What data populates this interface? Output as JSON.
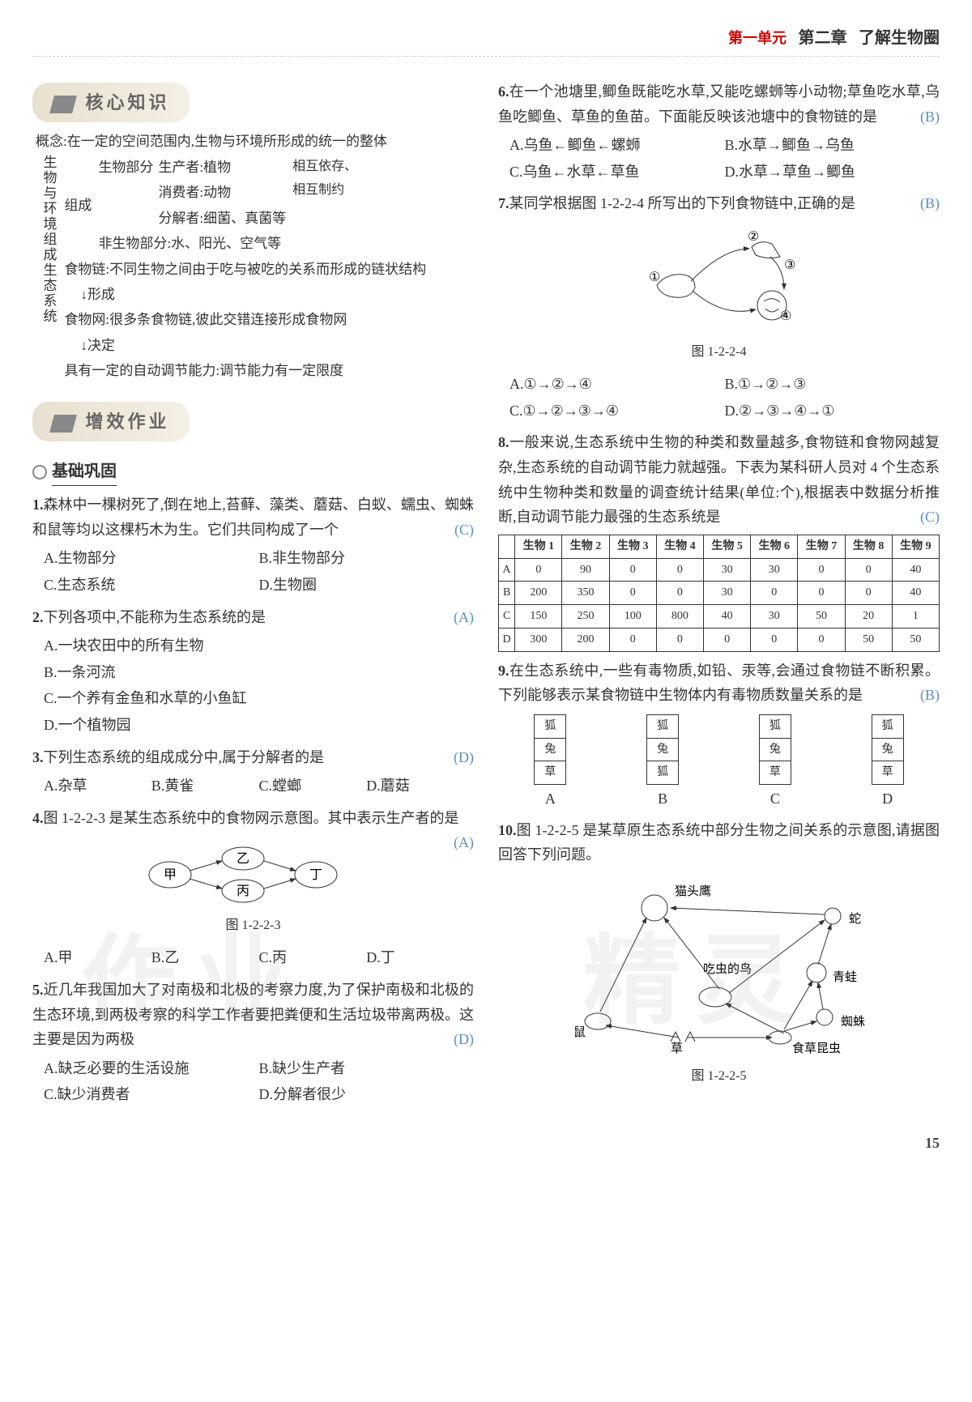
{
  "header": {
    "unit": "第一单元",
    "chapter": "第二章",
    "title": "了解生物圈"
  },
  "banners": {
    "core": "核心知识",
    "practice": "增效作业"
  },
  "subsection": "基础巩固",
  "concept": {
    "label": "生物与环境组成生态系统",
    "l1": "概念:在一定的空间范围内,生物与环境所形成的统一的整体",
    "prod": "生产者:植物",
    "cons": "消费者:动物",
    "decomp": "分解者:细菌、真菌等",
    "biotic": "生物部分",
    "abiotic": "非生物部分:水、阳光、空气等",
    "rel1": "相互依存、",
    "rel2": "相互制约",
    "compose": "组成",
    "chain": "食物链:不同生物之间由于吃与被吃的关系而形成的链状结构",
    "form": "形成",
    "web": "食物网:很多条食物链,彼此交错连接形成食物网",
    "decide": "决定",
    "auto": "具有一定的自动调节能力:调节能力有一定限度"
  },
  "q1": {
    "stem": "森林中一棵树死了,倒在地上,苔藓、藻类、蘑菇、白蚁、蠕虫、蜘蛛和鼠等均以这棵朽木为生。它们共同构成了一个",
    "ans": "(C)",
    "A": "A.生物部分",
    "B": "B.非生物部分",
    "C": "C.生态系统",
    "D": "D.生物圈"
  },
  "q2": {
    "stem": "下列各项中,不能称为生态系统的是",
    "ans": "(A)",
    "A": "A.一块农田中的所有生物",
    "B": "B.一条河流",
    "C": "C.一个养有金鱼和水草的小鱼缸",
    "D": "D.一个植物园"
  },
  "q3": {
    "stem": "下列生态系统的组成成分中,属于分解者的是",
    "ans": "(D)",
    "A": "A.杂草",
    "B": "B.黄雀",
    "C": "C.螳螂",
    "D": "D.蘑菇"
  },
  "q4": {
    "stem": "图 1-2-2-3 是某生态系统中的食物网示意图。其中表示生产者的是",
    "ans": "(A)",
    "caption": "图 1-2-2-3",
    "nodes": {
      "a": "甲",
      "b": "乙",
      "c": "丙",
      "d": "丁"
    },
    "A": "A.甲",
    "B": "B.乙",
    "C": "C.丙",
    "D": "D.丁"
  },
  "q5": {
    "stem": "近几年我国加大了对南极和北极的考察力度,为了保护南极和北极的生态环境,到两极考察的科学工作者要把粪便和生活垃圾带离两极。这主要是因为两极",
    "ans": "(D)",
    "A": "A.缺乏必要的生活设施",
    "B": "B.缺少生产者",
    "C": "C.缺少消费者",
    "D": "D.分解者很少"
  },
  "q6": {
    "stem": "在一个池塘里,鲫鱼既能吃水草,又能吃螺蛳等小动物;草鱼吃水草,乌鱼吃鲫鱼、草鱼的鱼苗。下面能反映该池塘中的食物链的是",
    "ans": "(B)",
    "A": "A.乌鱼←鲫鱼←螺蛳",
    "B": "B.水草→鲫鱼→乌鱼",
    "C": "C.乌鱼←水草←草鱼",
    "D": "D.水草→草鱼→鲫鱼"
  },
  "q7": {
    "stem": "某同学根据图 1-2-2-4 所写出的下列食物链中,正确的是",
    "ans": "(B)",
    "caption": "图 1-2-2-4",
    "A": "A.①→②→④",
    "B": "B.①→②→③",
    "C": "C.①→②→③→④",
    "D": "D.②→③→④→①"
  },
  "q8": {
    "stem": "一般来说,生态系统中生物的种类和数量越多,食物链和食物网越复杂,生态系统的自动调节能力就越强。下表为某科研人员对 4 个生态系统中生物种类和数量的调查统计结果(单位:个),根据表中数据分析推断,自动调节能力最强的生态系统是",
    "ans": "(C)",
    "cols": [
      "",
      "生物 1",
      "生物 2",
      "生物 3",
      "生物 4",
      "生物 5",
      "生物 6",
      "生物 7",
      "生物 8",
      "生物 9"
    ],
    "rows": [
      [
        "A",
        "0",
        "90",
        "0",
        "0",
        "30",
        "30",
        "0",
        "0",
        "40"
      ],
      [
        "B",
        "200",
        "350",
        "0",
        "0",
        "30",
        "0",
        "0",
        "0",
        "40"
      ],
      [
        "C",
        "150",
        "250",
        "100",
        "800",
        "40",
        "30",
        "50",
        "20",
        "1"
      ],
      [
        "D",
        "300",
        "200",
        "0",
        "0",
        "0",
        "0",
        "0",
        "50",
        "50"
      ]
    ]
  },
  "q9": {
    "stem": "在生态系统中,一些有毒物质,如铅、汞等,会通过食物链不断积累。下列能够表示某食物链中生物体内有毒物质数量关系的是",
    "ans": "(B)",
    "blocks": {
      "A": [
        "狐",
        "兔",
        "草"
      ],
      "B": [
        "狐",
        "兔",
        "狐"
      ],
      "C": [
        "狐",
        "兔",
        "草"
      ],
      "D": [
        "狐",
        "兔",
        "草"
      ]
    },
    "labels": {
      "A": "A",
      "B": "B",
      "C": "C",
      "D": "D"
    }
  },
  "q10": {
    "stem": "图 1-2-2-5 是某草原生态系统中部分生物之间关系的示意图,请据图回答下列问题。",
    "caption": "图 1-2-2-5",
    "labels": {
      "owl": "猫头鹰",
      "snake": "蛇",
      "frog": "青蛙",
      "spider": "蜘蛛",
      "insect": "食草昆虫",
      "bird": "吃虫的鸟",
      "mouse": "鼠",
      "grass": "草"
    }
  },
  "watermark": {
    "left": "作业",
    "right": "精灵"
  },
  "pageNum": "15"
}
